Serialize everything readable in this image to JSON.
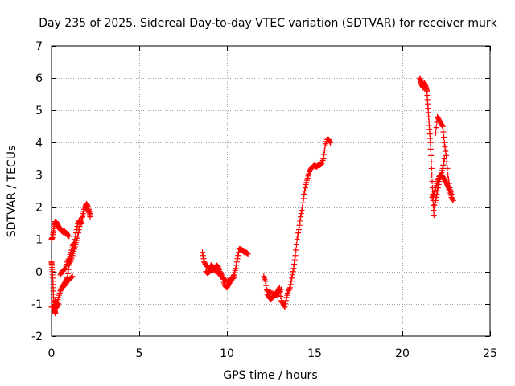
{
  "chart_data": {
    "type": "scatter",
    "title": "Day 235 of 2025, Sidereal Day-to-day VTEC variation (SDTVAR) for receiver murk",
    "xlabel": "GPS time / hours",
    "ylabel": "SDTVAR / TECUs",
    "xlim": [
      0,
      25
    ],
    "ylim": [
      -2,
      7
    ],
    "x_ticks": [
      0,
      5,
      10,
      15,
      20,
      25
    ],
    "y_ticks": [
      -2,
      -1,
      0,
      1,
      2,
      3,
      4,
      5,
      6,
      7
    ],
    "x_tick_labels": [
      "0",
      "5",
      "10",
      "15",
      "20",
      "25"
    ],
    "y_tick_labels": [
      "-2",
      "-1",
      "0",
      "1",
      "2",
      "3",
      "4",
      "5",
      "6",
      "7"
    ],
    "grid": true,
    "marker": "+",
    "color": "#ff0000",
    "series": [
      {
        "name": "SDTVAR",
        "segments": [
          {
            "x": [
              0.0,
              0.05,
              0.1,
              0.15,
              0.2,
              0.25,
              0.3,
              0.35,
              0.4,
              0.45,
              0.5,
              0.55,
              0.6,
              0.65,
              0.7,
              0.75,
              0.8,
              0.85,
              0.9,
              0.95,
              1.0
            ],
            "y": [
              1.0,
              1.05,
              1.2,
              1.4,
              1.55,
              1.55,
              1.5,
              1.45,
              1.4,
              1.35,
              1.3,
              1.3,
              1.25,
              1.25,
              1.2,
              1.25,
              1.2,
              1.2,
              1.15,
              1.1,
              1.1
            ]
          },
          {
            "x": [
              0.0,
              0.02,
              0.05,
              0.08,
              0.1,
              0.12,
              0.15,
              0.18,
              0.2,
              0.22
            ],
            "y": [
              0.3,
              0.2,
              0.0,
              -0.3,
              -0.6,
              -0.9,
              -1.1,
              -1.2,
              -1.25,
              -1.3
            ]
          },
          {
            "x": [
              0.0,
              0.1,
              0.2,
              0.3,
              0.4
            ],
            "y": [
              -1.1,
              -1.1,
              -1.15,
              -1.1,
              -1.0
            ]
          },
          {
            "x": [
              0.2,
              0.3,
              0.4,
              0.5,
              0.6,
              0.7,
              0.8,
              0.9,
              1.0,
              1.1,
              1.2,
              1.3,
              1.4,
              1.5,
              1.6,
              1.7,
              1.8,
              1.9,
              2.0,
              2.1,
              2.2
            ],
            "y": [
              -0.9,
              -1.0,
              -0.8,
              -0.6,
              -0.5,
              -0.4,
              -0.3,
              -0.2,
              0.2,
              0.35,
              0.5,
              0.7,
              0.9,
              1.1,
              1.4,
              1.6,
              1.8,
              2.0,
              2.1,
              2.0,
              1.8
            ]
          },
          {
            "x": [
              0.5,
              0.6,
              0.7,
              0.8,
              0.9,
              1.0,
              1.1,
              1.2,
              1.3,
              1.4,
              1.5,
              1.6,
              1.7,
              1.8,
              1.9,
              2.0,
              2.1,
              2.2
            ],
            "y": [
              -0.1,
              0.0,
              0.05,
              0.1,
              0.3,
              0.4,
              0.6,
              0.8,
              0.9,
              1.2,
              1.5,
              1.6,
              1.5,
              1.8,
              2.0,
              1.95,
              1.9,
              1.7
            ]
          },
          {
            "x": [
              0.6,
              0.7,
              0.8,
              0.9,
              1.0,
              1.1,
              1.2
            ],
            "y": [
              -0.5,
              -0.45,
              -0.4,
              -0.3,
              -0.25,
              -0.2,
              -0.15
            ]
          },
          {
            "x": [
              8.6,
              8.7,
              8.8,
              8.9,
              9.0,
              9.1,
              9.2,
              9.3,
              9.4,
              9.5,
              9.6,
              9.7,
              9.8,
              9.9,
              10.0,
              10.1,
              10.2,
              10.3,
              10.4,
              10.5,
              10.6,
              10.7,
              10.8,
              10.9,
              11.0,
              11.1,
              11.2
            ],
            "y": [
              0.6,
              0.3,
              0.2,
              0.15,
              0.1,
              0.2,
              0.15,
              0.1,
              0.2,
              0.15,
              0.0,
              -0.1,
              -0.3,
              -0.45,
              -0.5,
              -0.4,
              -0.3,
              -0.2,
              -0.1,
              0.1,
              0.4,
              0.7,
              0.7,
              0.65,
              0.6,
              0.6,
              0.55
            ]
          },
          {
            "x": [
              8.8,
              8.9,
              9.0,
              9.2,
              9.4,
              9.6,
              9.8,
              10.0,
              10.2,
              10.4
            ],
            "y": [
              0.0,
              -0.05,
              0.0,
              0.05,
              0.0,
              -0.1,
              -0.2,
              -0.3,
              -0.25,
              -0.2
            ]
          },
          {
            "x": [
              12.1,
              12.2,
              12.3,
              12.4,
              12.5,
              12.6,
              12.7,
              12.8,
              12.9,
              13.0,
              13.1,
              13.2,
              13.3,
              13.4,
              13.5,
              13.6,
              13.7,
              13.8,
              13.9,
              14.0,
              14.1,
              14.2,
              14.3,
              14.4,
              14.5,
              14.6,
              14.7,
              14.8,
              14.9,
              15.0,
              15.1,
              15.2,
              15.3,
              15.4,
              15.5,
              15.6,
              15.7,
              15.8,
              15.9
            ],
            "y": [
              -0.15,
              -0.3,
              -0.7,
              -0.8,
              -0.85,
              -0.8,
              -0.75,
              -0.7,
              -0.6,
              -0.5,
              -0.9,
              -1.0,
              -1.1,
              -0.8,
              -0.6,
              -0.5,
              -0.2,
              0.1,
              0.5,
              1.0,
              1.3,
              1.7,
              2.0,
              2.4,
              2.7,
              2.9,
              3.1,
              3.2,
              3.25,
              3.3,
              3.25,
              3.3,
              3.3,
              3.35,
              3.5,
              3.9,
              4.1,
              4.1,
              4.0
            ]
          },
          {
            "x": [
              12.3,
              12.5,
              12.7,
              12.9,
              13.1
            ],
            "y": [
              -0.6,
              -0.65,
              -0.7,
              -0.75,
              -0.55
            ]
          },
          {
            "x": [
              21.0,
              21.05,
              21.1,
              21.15,
              21.2,
              21.25,
              21.3,
              21.35,
              21.4,
              21.45,
              21.5,
              21.55,
              21.6,
              21.65,
              21.7,
              21.75,
              21.8
            ],
            "y": [
              6.0,
              5.9,
              5.8,
              5.75,
              5.7,
              5.85,
              5.8,
              5.7,
              5.6,
              5.2,
              4.8,
              4.4,
              4.0,
              3.4,
              2.8,
              2.2,
              1.75
            ]
          },
          {
            "x": [
              21.7,
              21.8,
              21.9,
              22.0,
              22.1,
              22.2,
              22.3,
              22.4,
              22.5,
              22.6,
              22.7,
              22.8,
              22.9
            ],
            "y": [
              2.3,
              2.4,
              2.6,
              2.8,
              2.95,
              3.0,
              2.95,
              2.85,
              2.75,
              2.65,
              2.5,
              2.3,
              2.2
            ]
          },
          {
            "x": [
              21.9,
              22.0,
              22.1,
              22.2,
              22.3,
              22.4,
              22.5,
              22.6,
              22.7,
              22.8
            ],
            "y": [
              4.3,
              4.8,
              4.7,
              4.6,
              4.5,
              4.0,
              3.6,
              3.0,
              2.6,
              2.4
            ]
          },
          {
            "x": [
              21.8,
              21.9,
              22.0,
              22.1,
              22.2,
              22.3,
              22.4
            ],
            "y": [
              2.0,
              2.2,
              2.5,
              2.8,
              3.0,
              3.2,
              3.5
            ]
          }
        ]
      }
    ]
  }
}
